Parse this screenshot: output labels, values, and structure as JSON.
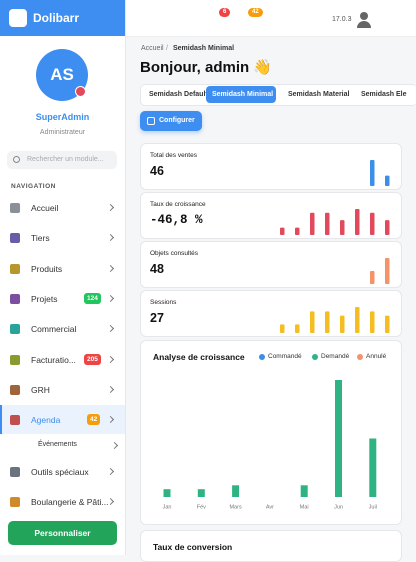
{
  "sidebar": {
    "brand": "Dolibarr",
    "avatar": "AS",
    "user_name": "SuperAdmin",
    "user_role": "Administrateur",
    "search_placeholder": "Rechercher un module...",
    "section": "NAVIGATION",
    "menu": [
      {
        "label": "Accueil",
        "icon": "#8a8f98"
      },
      {
        "label": "Tiers",
        "icon": "#6b5ca5"
      },
      {
        "label": "Produits",
        "icon": "#b8962e"
      },
      {
        "label": "Projets",
        "badge": 124,
        "badge_color": "#22c55e",
        "icon": "#7b4fa0"
      },
      {
        "label": "Commercial",
        "icon": "#2aa39a"
      },
      {
        "label": "Facturatio...",
        "badge": 205,
        "badge_color": "#ef4444",
        "icon": "#8a9a2e"
      },
      {
        "label": "GRH",
        "icon": "#a0643a"
      },
      {
        "label": "Agenda",
        "badge": 42,
        "badge_color": "#f59e0b",
        "icon": "#c0504d",
        "active": true
      }
    ],
    "submenu": "Événements",
    "menu_after": [
      {
        "label": "Outils spéciaux",
        "icon": "#6b7280"
      },
      {
        "label": "Boulangerie & Pâti...",
        "icon": "#d08a2a"
      }
    ],
    "button": "Personnaliser"
  },
  "topbar": {
    "badges": [
      {
        "text": 6,
        "color": "#ef4444"
      },
      {
        "text": 42,
        "color": "#f59e0b"
      }
    ],
    "version": "17.0.3"
  },
  "main": {
    "breadcrumb": [
      "Accueil",
      "Semidash Minimal"
    ],
    "greeting": "Bonjour, admin 👋",
    "tabs": [
      "Semidash Default",
      "Semidash Minimal",
      "Semidash Material",
      "Semidash Ele"
    ],
    "active_tab": 1,
    "configure": "Configurer",
    "stats": [
      {
        "label": "Total des ventes",
        "value": 46,
        "color": "#3b8fe8",
        "values": [
          0,
          0,
          0,
          0,
          0,
          0,
          10,
          4
        ]
      },
      {
        "label": "Taux de croissance",
        "value": "-46,8 %",
        "color": "#e14a5c",
        "values": [
          2,
          2,
          6,
          6,
          4,
          7,
          6,
          4
        ]
      },
      {
        "label": "Objets consultés",
        "value": 48,
        "color": "#f4926a",
        "values": [
          0,
          0,
          0,
          0,
          0,
          0,
          5,
          10
        ]
      },
      {
        "label": "Sessions",
        "value": 27,
        "color": "#f6bd22",
        "values": [
          2,
          2,
          5,
          5,
          4,
          6,
          5,
          4
        ]
      }
    ],
    "growth_chart": {
      "title": "Analyse de croissance",
      "categories": [
        "Jan",
        "Fév",
        "Mars",
        "Avr",
        "Mai",
        "Jun",
        "Juil"
      ],
      "series": [
        {
          "name": "Commandé",
          "color": "#3b8fe8",
          "values": [
            0,
            0,
            0,
            0,
            0,
            0,
            0
          ]
        },
        {
          "name": "Demandé",
          "color": "#2fb383",
          "values": [
            1,
            1,
            1.5,
            0,
            1.5,
            15,
            7.5
          ]
        },
        {
          "name": "Annulé",
          "color": "#f4926a",
          "values": [
            0,
            0,
            0,
            0,
            0,
            0,
            0
          ]
        }
      ]
    },
    "next_card": "Taux de conversion"
  }
}
